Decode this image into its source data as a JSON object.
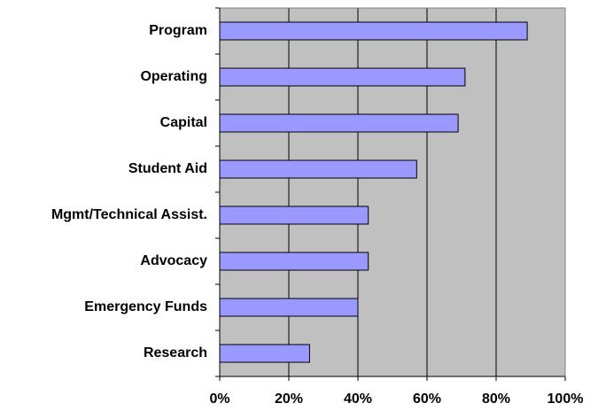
{
  "chart_data": {
    "type": "hbar",
    "categories": [
      "Program",
      "Operating",
      "Capital",
      "Student Aid",
      "Mgmt/Technical Assist.",
      "Advocacy",
      "Emergency Funds",
      "Research"
    ],
    "values": [
      89,
      71,
      69,
      57,
      43,
      43,
      40,
      26
    ],
    "color": "#9999ff",
    "xlim": [
      0,
      100
    ],
    "xticks": [
      {
        "value": 0,
        "label": "0%"
      },
      {
        "value": 20,
        "label": "20%"
      },
      {
        "value": 40,
        "label": "40%"
      },
      {
        "value": 60,
        "label": "60%"
      },
      {
        "value": 80,
        "label": "80%"
      },
      {
        "value": 100,
        "label": "100%"
      }
    ],
    "grid": true
  }
}
